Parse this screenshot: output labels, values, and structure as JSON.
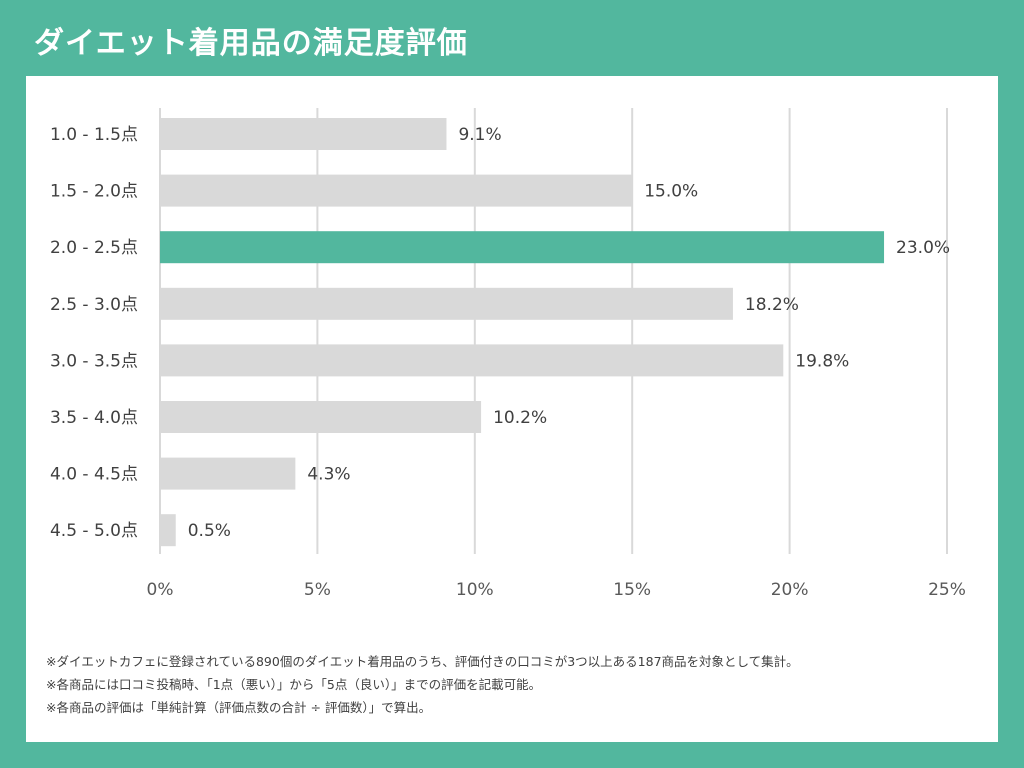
{
  "title": "ダイエット着用品の満足度評価",
  "colors": {
    "background": "#52b79e",
    "highlight_bar": "#52b79e",
    "default_bar": "#d9d9d9",
    "panel": "#ffffff"
  },
  "chart_data": {
    "type": "bar",
    "orientation": "horizontal",
    "categories": [
      "1.0 - 1.5点",
      "1.5 - 2.0点",
      "2.0 - 2.5点",
      "2.5 - 3.0点",
      "3.0 - 3.5点",
      "3.5 - 4.0点",
      "4.0 - 4.5点",
      "4.5 - 5.0点"
    ],
    "values": [
      9.1,
      15.0,
      23.0,
      18.2,
      19.8,
      10.2,
      4.3,
      0.5
    ],
    "value_labels": [
      "9.1%",
      "15.0%",
      "23.0%",
      "18.2%",
      "19.8%",
      "10.2%",
      "4.3%",
      "0.5%"
    ],
    "highlight_index": 2,
    "xlim": [
      0,
      25
    ],
    "xticks": [
      0,
      5,
      10,
      15,
      20,
      25
    ],
    "xtick_labels": [
      "0%",
      "5%",
      "10%",
      "15%",
      "20%",
      "25%"
    ],
    "grid": "vertical",
    "legend": "none",
    "xlabel": "",
    "ylabel": ""
  },
  "notes": [
    "※ダイエットカフェに登録されている890個のダイエット着用品のうち、評価付きの口コミが3つ以上ある187商品を対象として集計。",
    "※各商品には口コミ投稿時、「1点（悪い）」から「5点（良い）」までの評価を記載可能。",
    "※各商品の評価は「単純計算（評価点数の合計 ÷ 評価数）」で算出。"
  ]
}
